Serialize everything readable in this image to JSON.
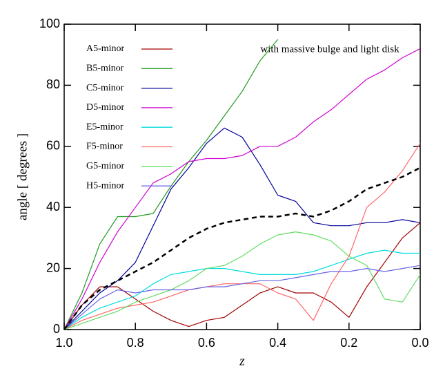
{
  "chart_data": {
    "type": "line",
    "annotation": "with massive bulge and light disk",
    "x_label": "z",
    "y_label": "angle [ degrees ]",
    "x": [
      1.0,
      0.95,
      0.9,
      0.85,
      0.8,
      0.75,
      0.7,
      0.65,
      0.6,
      0.55,
      0.5,
      0.45,
      0.4,
      0.35,
      0.3,
      0.25,
      0.2,
      0.15,
      0.1,
      0.05,
      0.0
    ],
    "series": [
      {
        "name": "A5-minor",
        "color": "#a00000",
        "values": [
          0,
          8,
          14,
          14,
          10,
          6,
          3,
          1,
          3,
          4,
          8,
          12,
          14,
          12,
          12,
          9,
          4,
          14,
          22,
          30,
          35
        ]
      },
      {
        "name": "B5-minor",
        "color": "#1f9a1f",
        "values": [
          0,
          12,
          28,
          37,
          37,
          38,
          47,
          55,
          62,
          70,
          78,
          88,
          95,
          null,
          null,
          null,
          null,
          null,
          null,
          null,
          null
        ]
      },
      {
        "name": "C5-minor",
        "color": "#000099",
        "values": [
          0,
          6,
          12,
          16,
          22,
          34,
          46,
          53,
          61,
          66,
          63,
          54,
          44,
          42,
          35,
          34,
          34,
          35,
          35,
          36,
          35
        ]
      },
      {
        "name": "D5-minor",
        "color": "#d000d0",
        "values": [
          0,
          10,
          22,
          32,
          40,
          48,
          51,
          55,
          56,
          56,
          57,
          60,
          60,
          63,
          68,
          72,
          77,
          82,
          85,
          89,
          92
        ]
      },
      {
        "name": "E5-minor",
        "color": "#00dcdc",
        "values": [
          0,
          4,
          7,
          9,
          11,
          15,
          18,
          19,
          20,
          20,
          19,
          18,
          18,
          18,
          19,
          21,
          23,
          25,
          26,
          25,
          25
        ]
      },
      {
        "name": "F5-minor",
        "color": "#ff6464",
        "values": [
          0,
          3,
          5,
          7,
          8,
          9,
          11,
          13,
          14,
          15,
          15,
          15,
          12,
          10,
          3,
          15,
          24,
          40,
          45,
          52,
          61
        ]
      },
      {
        "name": "G5-minor",
        "color": "#64dc64",
        "values": [
          0,
          2,
          4,
          6,
          9,
          11,
          13,
          16,
          20,
          21,
          24,
          28,
          31,
          32,
          31,
          29,
          24,
          21,
          10,
          9,
          18
        ]
      },
      {
        "name": "H5-minor",
        "color": "#6464e6",
        "values": [
          0,
          5,
          10,
          13,
          12,
          13,
          13,
          13,
          14,
          14,
          15,
          16,
          16,
          17,
          18,
          19,
          19,
          20,
          19,
          20,
          21
        ]
      },
      {
        "color": "#000000",
        "dash": true,
        "values": [
          0,
          8,
          13,
          16,
          19,
          22,
          26,
          30,
          33,
          35,
          36,
          37,
          37,
          38,
          37,
          39,
          42,
          46,
          48,
          50,
          53
        ]
      }
    ],
    "xlim": [
      1.0,
      0.0
    ],
    "xticks": [
      {
        "value": 1.0,
        "label": "1.0"
      },
      0.8,
      0.6,
      0.4,
      0.2,
      {
        "value": 0.0,
        "label": "0.0"
      }
    ],
    "ylim": [
      0,
      100
    ],
    "yticks": [
      0,
      20,
      40,
      60,
      80,
      100
    ],
    "grid": false,
    "legend": "upper left"
  }
}
